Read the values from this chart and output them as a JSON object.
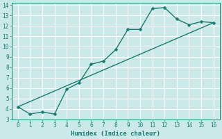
{
  "xlabel": "Humidex (Indice chaleur)",
  "bg_color": "#cce9e9",
  "grid_color": "#ffffff",
  "line_color": "#1a7a6e",
  "xlim": [
    -0.5,
    16.5
  ],
  "ylim": [
    3,
    14.2
  ],
  "xticks": [
    0,
    1,
    2,
    3,
    4,
    5,
    6,
    7,
    8,
    9,
    10,
    11,
    12,
    13,
    14,
    15,
    16
  ],
  "yticks": [
    3,
    4,
    5,
    6,
    7,
    8,
    9,
    10,
    11,
    12,
    13,
    14
  ],
  "curve1_x": [
    0,
    1,
    2,
    3,
    4,
    5,
    6,
    7,
    8,
    9,
    10,
    11,
    12,
    13,
    14,
    15,
    16
  ],
  "curve1_y": [
    4.2,
    3.5,
    3.7,
    3.5,
    5.9,
    6.5,
    8.3,
    8.6,
    9.7,
    11.65,
    11.65,
    13.65,
    13.75,
    12.65,
    12.1,
    12.4,
    12.3
  ],
  "curve2_x": [
    0,
    16
  ],
  "curve2_y": [
    4.2,
    12.3
  ],
  "marker_size": 2.5,
  "line_width": 1.0
}
